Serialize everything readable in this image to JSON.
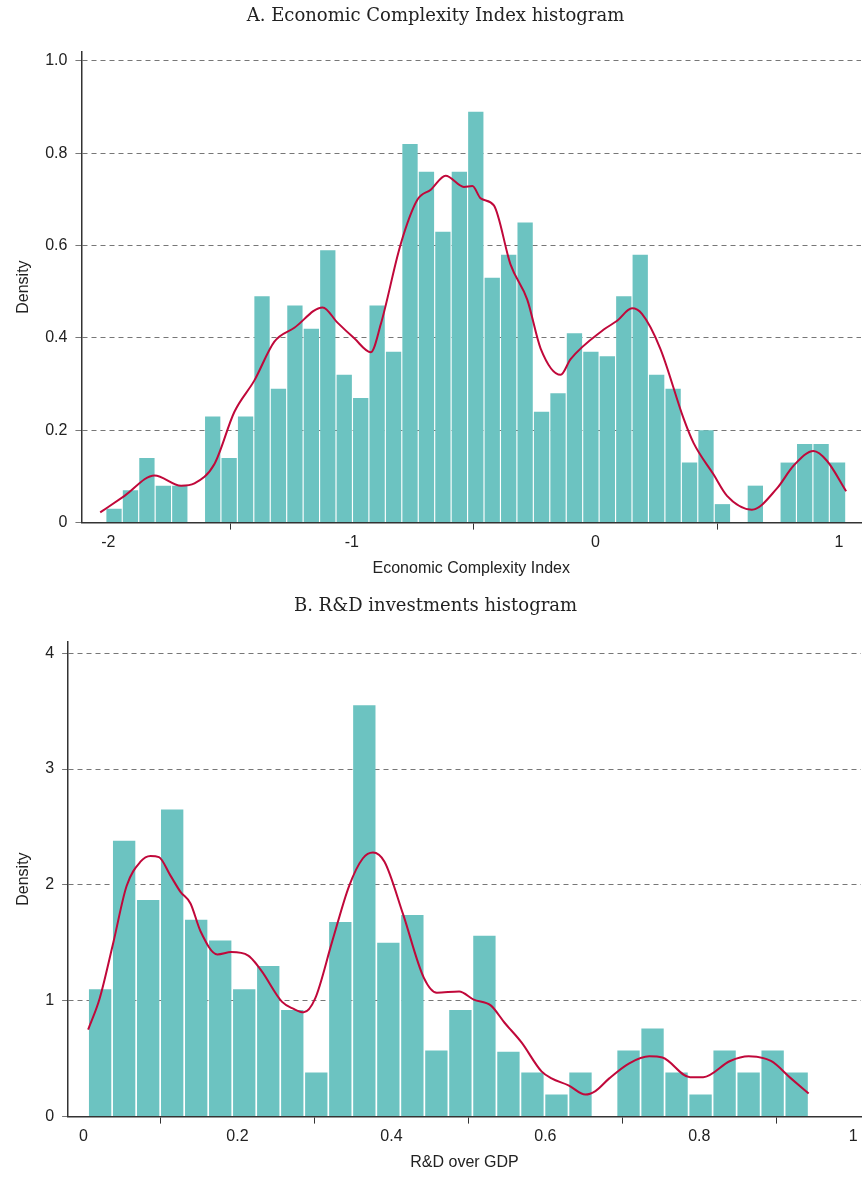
{
  "chart_data": [
    {
      "type": "histogram",
      "title": "A. Economic Complexity Index histogram",
      "xlabel": "Economic Complexity Index",
      "ylabel": "Density",
      "xlim": [
        -2.11,
        1.09
      ],
      "ylim": [
        0,
        1.02
      ],
      "xticks": [
        -2,
        -1,
        0,
        1
      ],
      "yticks": [
        0,
        0.2,
        0.4,
        0.6,
        0.8,
        {
          "value": 1,
          "label": "1.0"
        }
      ],
      "grid": "y",
      "legend": false,
      "series": [
        {
          "type": "histogram",
          "color": "#6cc3c1",
          "bins": [
            -2.01,
            -1.9425,
            -1.875,
            -1.8075,
            -1.74,
            -1.6725,
            -1.605,
            -1.5375,
            -1.47,
            -1.4025,
            -1.335,
            -1.2675,
            -1.2,
            -1.1325,
            -1.065,
            -0.9975,
            -0.93,
            -0.8625,
            -0.795,
            -0.7275,
            -0.66,
            -0.5925,
            -0.525,
            -0.4575,
            -0.39,
            -0.3225,
            -0.255,
            -0.1875,
            -0.12,
            -0.0525,
            0.015,
            0.0825,
            0.15,
            0.2175,
            0.285,
            0.3525,
            0.42,
            0.4875,
            0.555,
            0.6225,
            0.69,
            0.7575,
            0.825,
            0.8925,
            0.96,
            1.0275
          ],
          "values": [
            0.03,
            0.07,
            0.14,
            0.08,
            0.08,
            0,
            0.23,
            0.14,
            0.23,
            0.49,
            0.29,
            0.47,
            0.42,
            0.59,
            0.32,
            0.27,
            0.47,
            0.37,
            0.82,
            0.76,
            0.63,
            0.76,
            0.89,
            0.53,
            0.58,
            0.65,
            0.24,
            0.28,
            0.41,
            0.37,
            0.36,
            0.49,
            0.58,
            0.32,
            0.29,
            0.13,
            0.2,
            0.04,
            0,
            0.08,
            0,
            0.13,
            0.17,
            0.17,
            0.13
          ]
        },
        {
          "type": "line",
          "color": "#c0083a",
          "x": [
            -2.033,
            -1.933,
            -1.81,
            -1.701,
            -1.646,
            -1.564,
            -1.482,
            -1.4,
            -1.318,
            -1.236,
            -1.12,
            -1.059,
            -0.99,
            -0.922,
            -0.881,
            -0.799,
            -0.731,
            -0.676,
            -0.615,
            -0.54,
            -0.505,
            -0.471,
            -0.417,
            -0.348,
            -0.28,
            -0.225,
            -0.143,
            -0.102,
            0.034,
            0.089,
            0.15,
            0.191,
            0.266,
            0.362,
            0.403,
            0.485,
            0.54,
            0.642,
            0.745,
            0.813,
            0.895,
            0.95,
            1.029
          ],
          "values": [
            0.022,
            0.058,
            0.102,
            0.08,
            0.085,
            0.127,
            0.24,
            0.308,
            0.392,
            0.422,
            0.466,
            0.433,
            0.399,
            0.369,
            0.43,
            0.604,
            0.699,
            0.721,
            0.751,
            0.727,
            0.729,
            0.702,
            0.687,
            0.558,
            0.483,
            0.377,
            0.32,
            0.354,
            0.418,
            0.437,
            0.464,
            0.452,
            0.377,
            0.225,
            0.172,
            0.104,
            0.058,
            0.028,
            0.074,
            0.123,
            0.155,
            0.134,
            0.068
          ]
        }
      ]
    },
    {
      "type": "histogram",
      "title": "B. R&D investments histogram",
      "xlabel": "R&D over GDP",
      "ylabel": "Density",
      "xlim": [
        -0.02,
        1.01
      ],
      "ylim": [
        0,
        4.1
      ],
      "xticks": [
        0,
        0.2,
        0.4,
        0.6,
        0.8,
        1
      ],
      "yticks": [
        0,
        1,
        2,
        3,
        4
      ],
      "grid": "y",
      "legend": false,
      "series": [
        {
          "type": "histogram",
          "color": "#6cc3c1",
          "bins": [
            0.006,
            0.0372,
            0.0684,
            0.0996,
            0.1308,
            0.162,
            0.1932,
            0.2244,
            0.2556,
            0.2868,
            0.318,
            0.3492,
            0.3804,
            0.4116,
            0.4428,
            0.474,
            0.5052,
            0.5364,
            0.5676,
            0.5988,
            0.63,
            0.6612,
            0.6924,
            0.7236,
            0.7548,
            0.786,
            0.8172,
            0.8484,
            0.8796,
            0.9108,
            0.942
          ],
          "values": [
            1.1,
            2.38,
            1.87,
            2.65,
            1.7,
            1.52,
            1.1,
            1.3,
            0.92,
            0.38,
            1.68,
            3.55,
            1.5,
            1.74,
            0.57,
            0.92,
            1.56,
            0.56,
            0.38,
            0.19,
            0.38,
            0,
            0.57,
            0.76,
            0.38,
            0.19,
            0.57,
            0.38,
            0.57,
            0.38
          ]
        },
        {
          "type": "line",
          "color": "#c0083a",
          "x": [
            0.006,
            0.021,
            0.039,
            0.056,
            0.074,
            0.087,
            0.098,
            0.113,
            0.126,
            0.139,
            0.152,
            0.174,
            0.192,
            0.214,
            0.231,
            0.258,
            0.273,
            0.286,
            0.301,
            0.323,
            0.345,
            0.363,
            0.376,
            0.391,
            0.415,
            0.442,
            0.459,
            0.488,
            0.507,
            0.529,
            0.547,
            0.569,
            0.595,
            0.608,
            0.63,
            0.652,
            0.665,
            0.683,
            0.709,
            0.735,
            0.752,
            0.788,
            0.805,
            0.84,
            0.864,
            0.893,
            0.919,
            0.942
          ],
          "values": [
            0.75,
            1.02,
            1.51,
            1.99,
            2.2,
            2.25,
            2.24,
            2.08,
            1.94,
            1.84,
            1.6,
            1.4,
            1.42,
            1.39,
            1.26,
            0.99,
            0.93,
            0.9,
            1.02,
            1.51,
            1.99,
            2.23,
            2.28,
            2.2,
            1.75,
            1.2,
            1.07,
            1.08,
            1.01,
            0.96,
            0.81,
            0.64,
            0.39,
            0.33,
            0.27,
            0.19,
            0.22,
            0.33,
            0.46,
            0.52,
            0.51,
            0.34,
            0.34,
            0.48,
            0.52,
            0.48,
            0.33,
            0.2
          ]
        }
      ]
    }
  ]
}
